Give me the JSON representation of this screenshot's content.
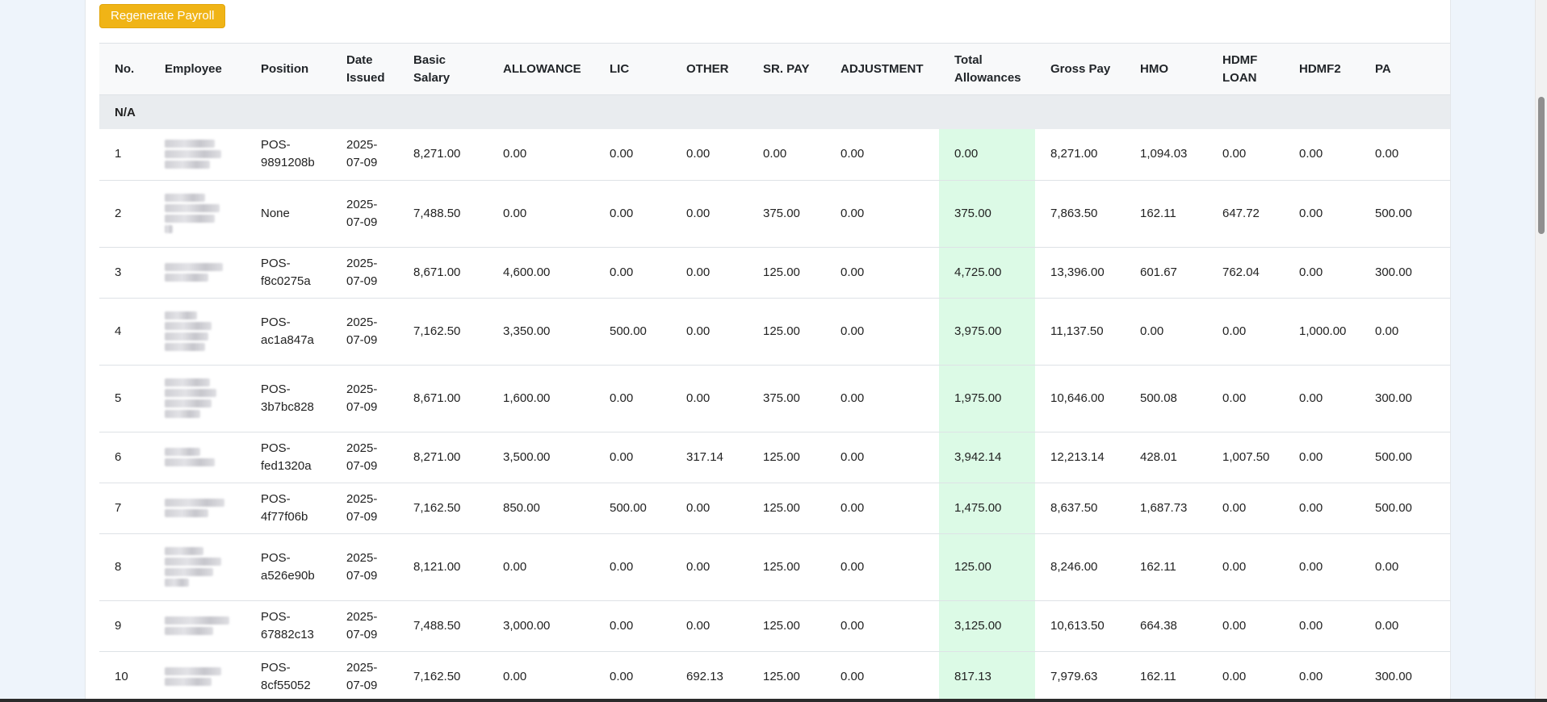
{
  "actions": {
    "regenerate_label": "Regenerate Payroll"
  },
  "columns": {
    "no": "No.",
    "employee": "Employee",
    "position": "Position",
    "date_issued": "Date Issued",
    "basic_salary": "Basic Salary",
    "allowance": "ALLOWANCE",
    "lic": "LIC",
    "other": "OTHER",
    "sr_pay": "SR. PAY",
    "adjustment": "ADJUSTMENT",
    "total_allowances": "Total Allowances",
    "gross_pay": "Gross Pay",
    "hmo": "HMO",
    "hdmf_loan": "HDMF LOAN",
    "hdmf2": "HDMF2",
    "pa": "PA"
  },
  "group_label": "N/A",
  "rows": [
    {
      "no": "1",
      "position": "POS-9891208b",
      "date": "2025-07-09",
      "basic": "8,271.00",
      "allowance": "0.00",
      "lic": "0.00",
      "other": "0.00",
      "sr_pay": "0.00",
      "adjustment": "0.00",
      "total_allowances": "0.00",
      "gross_pay": "8,271.00",
      "hmo": "1,094.03",
      "hdmf_loan": "0.00",
      "hdmf2": "0.00",
      "pa": "0.00"
    },
    {
      "no": "2",
      "position": "None",
      "date": "2025-07-09",
      "basic": "7,488.50",
      "allowance": "0.00",
      "lic": "0.00",
      "other": "0.00",
      "sr_pay": "375.00",
      "adjustment": "0.00",
      "total_allowances": "375.00",
      "gross_pay": "7,863.50",
      "hmo": "162.11",
      "hdmf_loan": "647.72",
      "hdmf2": "0.00",
      "pa": "500.00"
    },
    {
      "no": "3",
      "position": "POS-f8c0275a",
      "date": "2025-07-09",
      "basic": "8,671.00",
      "allowance": "4,600.00",
      "lic": "0.00",
      "other": "0.00",
      "sr_pay": "125.00",
      "adjustment": "0.00",
      "total_allowances": "4,725.00",
      "gross_pay": "13,396.00",
      "hmo": "601.67",
      "hdmf_loan": "762.04",
      "hdmf2": "0.00",
      "pa": "300.00"
    },
    {
      "no": "4",
      "position": "POS-ac1a847a",
      "date": "2025-07-09",
      "basic": "7,162.50",
      "allowance": "3,350.00",
      "lic": "500.00",
      "other": "0.00",
      "sr_pay": "125.00",
      "adjustment": "0.00",
      "total_allowances": "3,975.00",
      "gross_pay": "11,137.50",
      "hmo": "0.00",
      "hdmf_loan": "0.00",
      "hdmf2": "1,000.00",
      "pa": "0.00"
    },
    {
      "no": "5",
      "position": "POS-3b7bc828",
      "date": "2025-07-09",
      "basic": "8,671.00",
      "allowance": "1,600.00",
      "lic": "0.00",
      "other": "0.00",
      "sr_pay": "375.00",
      "adjustment": "0.00",
      "total_allowances": "1,975.00",
      "gross_pay": "10,646.00",
      "hmo": "500.08",
      "hdmf_loan": "0.00",
      "hdmf2": "0.00",
      "pa": "300.00"
    },
    {
      "no": "6",
      "position": "POS-fed1320a",
      "date": "2025-07-09",
      "basic": "8,271.00",
      "allowance": "3,500.00",
      "lic": "0.00",
      "other": "317.14",
      "sr_pay": "125.00",
      "adjustment": "0.00",
      "total_allowances": "3,942.14",
      "gross_pay": "12,213.14",
      "hmo": "428.01",
      "hdmf_loan": "1,007.50",
      "hdmf2": "0.00",
      "pa": "500.00"
    },
    {
      "no": "7",
      "position": "POS-4f77f06b",
      "date": "2025-07-09",
      "basic": "7,162.50",
      "allowance": "850.00",
      "lic": "500.00",
      "other": "0.00",
      "sr_pay": "125.00",
      "adjustment": "0.00",
      "total_allowances": "1,475.00",
      "gross_pay": "8,637.50",
      "hmo": "1,687.73",
      "hdmf_loan": "0.00",
      "hdmf2": "0.00",
      "pa": "500.00"
    },
    {
      "no": "8",
      "position": "POS-a526e90b",
      "date": "2025-07-09",
      "basic": "8,121.00",
      "allowance": "0.00",
      "lic": "0.00",
      "other": "0.00",
      "sr_pay": "125.00",
      "adjustment": "0.00",
      "total_allowances": "125.00",
      "gross_pay": "8,246.00",
      "hmo": "162.11",
      "hdmf_loan": "0.00",
      "hdmf2": "0.00",
      "pa": "0.00"
    },
    {
      "no": "9",
      "position": "POS-67882c13",
      "date": "2025-07-09",
      "basic": "7,488.50",
      "allowance": "3,000.00",
      "lic": "0.00",
      "other": "0.00",
      "sr_pay": "125.00",
      "adjustment": "0.00",
      "total_allowances": "3,125.00",
      "gross_pay": "10,613.50",
      "hmo": "664.38",
      "hdmf_loan": "0.00",
      "hdmf2": "0.00",
      "pa": "0.00"
    },
    {
      "no": "10",
      "position": "POS-8cf55052",
      "date": "2025-07-09",
      "basic": "7,162.50",
      "allowance": "0.00",
      "lic": "0.00",
      "other": "692.13",
      "sr_pay": "125.00",
      "adjustment": "0.00",
      "total_allowances": "817.13",
      "gross_pay": "7,979.63",
      "hmo": "162.11",
      "hdmf_loan": "0.00",
      "hdmf2": "0.00",
      "pa": "300.00"
    }
  ],
  "colors": {
    "accent_button": "#f0b416",
    "total_column_bg": "#dcfae6",
    "header_bg": "#f8f9fa",
    "group_row_bg": "#e9ecef"
  }
}
